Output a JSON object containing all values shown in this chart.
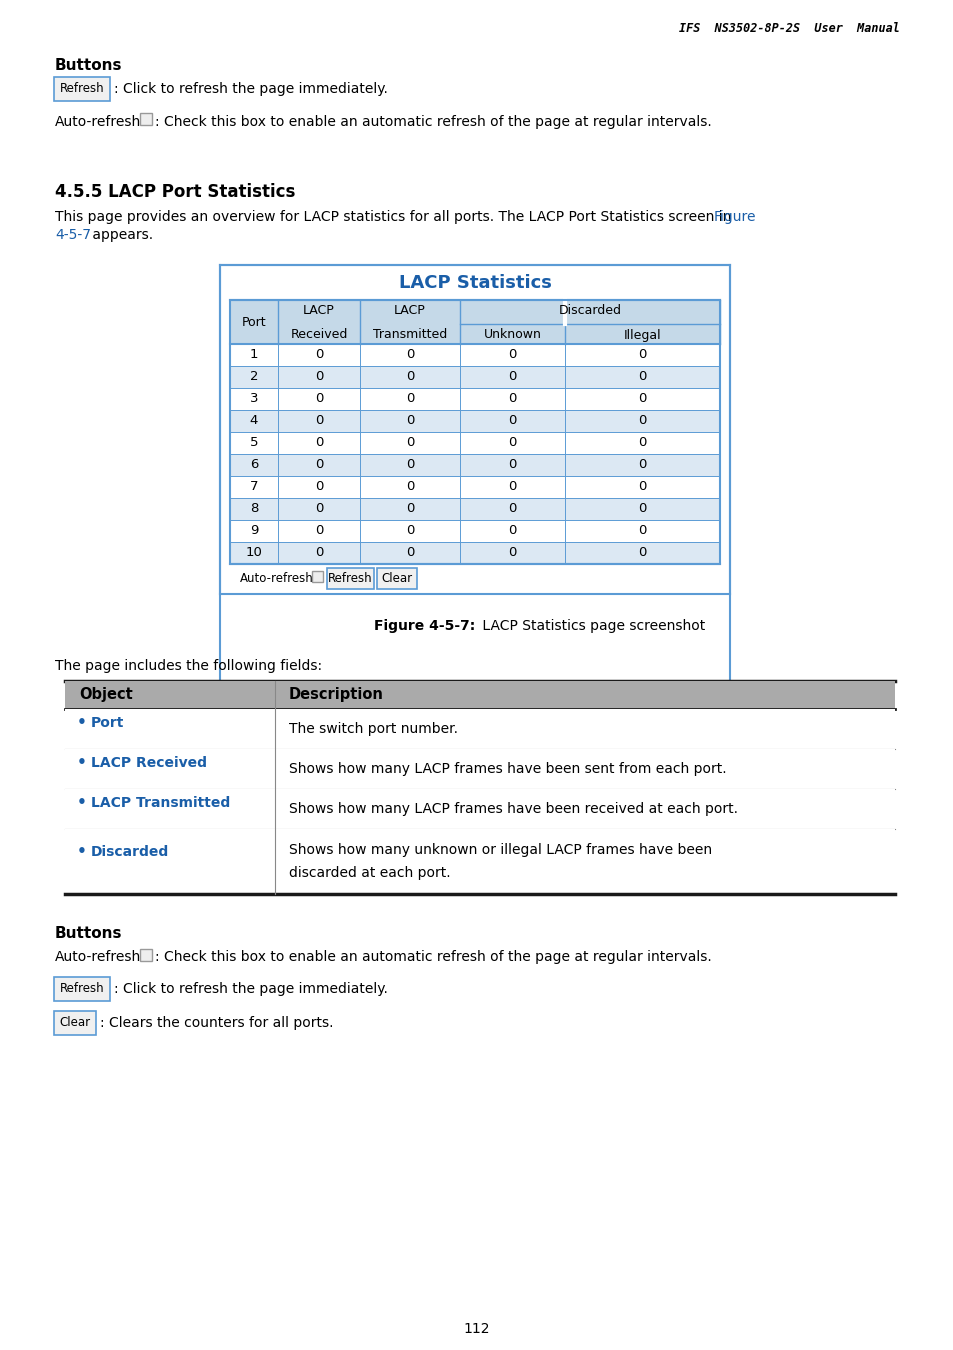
{
  "header_text": "IFS  NS3502-8P-2S  User  Manual",
  "section1_title": "Buttons",
  "refresh_btn_text": "Refresh",
  "refresh_desc": ": Click to refresh the page immediately.",
  "autorefresh_label": "Auto-refresh",
  "autorefresh_desc": ": Check this box to enable an automatic refresh of the page at regular intervals.",
  "section_45_title": "4.5.5 LACP Port Statistics",
  "body_text1": "This page provides an overview for LACP statistics for all ports. The LACP Port Statistics screen in ",
  "body_link": "Figure",
  "body_text2_link": "4-5-7",
  "body_text2_normal": " appears.",
  "table_title": "LACP Statistics",
  "table_col1": "Port",
  "table_col2_top": "LACP",
  "table_col2_bot": "Received",
  "table_col3_top": "LACP",
  "table_col3_bot": "Transmitted",
  "table_col4_top": "Discarded",
  "table_col4_bot1": "Unknown",
  "table_col4_bot2": "Illegal",
  "table_rows": [
    1,
    2,
    3,
    4,
    5,
    6,
    7,
    8,
    9,
    10
  ],
  "fig_caption_bold": "Figure 4-5-7:",
  "fig_caption_normal": " LACP Statistics page screenshot",
  "fields_intro": "The page includes the following fields:",
  "obj_header": "Object",
  "desc_header": "Description",
  "field_rows": [
    {
      "object": "Port",
      "desc": "The switch port number.",
      "bullet_color": "#1a5ea8"
    },
    {
      "object": "LACP Received",
      "desc": "Shows how many LACP frames have been sent from each port.",
      "bullet_color": "#1a5ea8"
    },
    {
      "object": "LACP Transmitted",
      "desc": "Shows how many LACP frames have been received at each port.",
      "bullet_color": "#1a5ea8"
    },
    {
      "object": "Discarded",
      "desc1": "Shows how many unknown or illegal LACP frames have been",
      "desc2": "discarded at each port.",
      "bullet_color": "#1a5ea8"
    }
  ],
  "section2_title": "Buttons",
  "autorefresh2_label": "Auto-refresh",
  "autorefresh2_desc": ": Check this box to enable an automatic refresh of the page at regular intervals.",
  "refresh2_btn": "Refresh",
  "refresh2_desc": ": Click to refresh the page immediately.",
  "clear_btn": "Clear",
  "clear_desc": ": Clears the counters for all ports.",
  "page_number": "112",
  "blue_color": "#1a5ea8",
  "header_bg": "#c5d9e8",
  "stripe_bg": "#dce8f3",
  "table_border": "#5b9bd5",
  "btn_border": "#5b9bd5",
  "gray_header_bg": "#aaaaaa",
  "table_outer_border": "#5b9bd5",
  "obj_table_border_thick": "#1a1a1a",
  "obj_table_border_thin": "#888888"
}
